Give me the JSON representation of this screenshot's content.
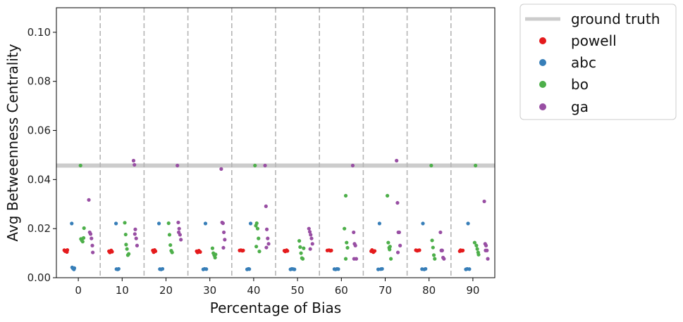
{
  "chart_data": {
    "type": "scatter",
    "xlabel": "Percentage of Bias",
    "ylabel": "Avg Betweenness Centrality",
    "xlim": [
      -5,
      95
    ],
    "ylim": [
      0,
      0.11
    ],
    "yticks": [
      "0.00",
      "0.02",
      "0.04",
      "0.06",
      "0.08",
      "0.10"
    ],
    "xticks": [
      "0",
      "10",
      "20",
      "30",
      "40",
      "50",
      "60",
      "70",
      "80",
      "90"
    ],
    "xtick_values": [
      0,
      10,
      20,
      30,
      40,
      50,
      60,
      70,
      80,
      90
    ],
    "ytick_values": [
      0,
      0.02,
      0.04,
      0.06,
      0.08,
      0.1
    ],
    "separators": [
      5,
      15,
      25,
      35,
      45,
      55,
      65,
      75,
      85
    ],
    "ground_truth": {
      "name": "ground truth",
      "value": 0.0457,
      "color": "#cccccc"
    },
    "legend_position": "outside-top-right",
    "grid": false,
    "series": [
      {
        "name": "powell",
        "color": "#e41a1c",
        "points": [
          [
            -3.2,
            0.0112
          ],
          [
            -3.0,
            0.0108
          ],
          [
            -2.8,
            0.011
          ],
          [
            -2.6,
            0.0105
          ],
          [
            -2.5,
            0.0113
          ],
          [
            7.0,
            0.0108
          ],
          [
            7.2,
            0.0103
          ],
          [
            7.5,
            0.0111
          ],
          [
            7.7,
            0.0106
          ],
          [
            17.0,
            0.0111
          ],
          [
            17.2,
            0.0104
          ],
          [
            17.4,
            0.0113
          ],
          [
            17.6,
            0.0108
          ],
          [
            27.0,
            0.0108
          ],
          [
            27.2,
            0.0103
          ],
          [
            27.5,
            0.011
          ],
          [
            27.8,
            0.0105
          ],
          [
            36.8,
            0.0111
          ],
          [
            37.1,
            0.0112
          ],
          [
            37.4,
            0.011
          ],
          [
            37.6,
            0.0111
          ],
          [
            47.0,
            0.011
          ],
          [
            47.2,
            0.0107
          ],
          [
            47.5,
            0.0112
          ],
          [
            47.7,
            0.0109
          ],
          [
            56.8,
            0.0111
          ],
          [
            57.2,
            0.0112
          ],
          [
            57.5,
            0.011
          ],
          [
            57.7,
            0.0111
          ],
          [
            66.8,
            0.0108
          ],
          [
            67.0,
            0.0113
          ],
          [
            67.3,
            0.0104
          ],
          [
            67.6,
            0.0109
          ],
          [
            77.0,
            0.0112
          ],
          [
            77.3,
            0.011
          ],
          [
            77.5,
            0.0111
          ],
          [
            77.8,
            0.0112
          ],
          [
            87.0,
            0.0108
          ],
          [
            87.2,
            0.0112
          ],
          [
            87.5,
            0.011
          ],
          [
            87.7,
            0.0111
          ]
        ]
      },
      {
        "name": "abc",
        "color": "#377eb8",
        "points": [
          [
            -1.5,
            0.0221
          ],
          [
            -1.4,
            0.0042
          ],
          [
            -1.2,
            0.0037
          ],
          [
            -1.0,
            0.0034
          ],
          [
            -0.9,
            0.0039
          ],
          [
            8.6,
            0.0221
          ],
          [
            8.7,
            0.0035
          ],
          [
            9.0,
            0.0034
          ],
          [
            9.2,
            0.0036
          ],
          [
            18.4,
            0.0221
          ],
          [
            18.6,
            0.0035
          ],
          [
            18.9,
            0.0034
          ],
          [
            19.2,
            0.0036
          ],
          [
            28.5,
            0.0034
          ],
          [
            28.8,
            0.0036
          ],
          [
            29.0,
            0.0221
          ],
          [
            29.2,
            0.0035
          ],
          [
            38.5,
            0.0034
          ],
          [
            38.8,
            0.0036
          ],
          [
            39.0,
            0.0035
          ],
          [
            39.3,
            0.0221
          ],
          [
            48.4,
            0.0034
          ],
          [
            48.7,
            0.0036
          ],
          [
            49.0,
            0.0035
          ],
          [
            49.3,
            0.0034
          ],
          [
            58.4,
            0.0035
          ],
          [
            58.7,
            0.0034
          ],
          [
            59.0,
            0.0036
          ],
          [
            59.3,
            0.0035
          ],
          [
            68.4,
            0.0034
          ],
          [
            68.7,
            0.0221
          ],
          [
            69.0,
            0.0035
          ],
          [
            69.3,
            0.0036
          ],
          [
            78.4,
            0.0035
          ],
          [
            78.6,
            0.0221
          ],
          [
            78.9,
            0.0034
          ],
          [
            79.2,
            0.0036
          ],
          [
            88.4,
            0.0034
          ],
          [
            88.7,
            0.0036
          ],
          [
            88.9,
            0.0221
          ],
          [
            89.2,
            0.0035
          ]
        ]
      },
      {
        "name": "bo",
        "color": "#4daf4a",
        "points": [
          [
            0.5,
            0.0457
          ],
          [
            0.6,
            0.0158
          ],
          [
            0.8,
            0.0152
          ],
          [
            1.0,
            0.0147
          ],
          [
            1.2,
            0.0162
          ],
          [
            1.3,
            0.0202
          ],
          [
            10.6,
            0.0224
          ],
          [
            10.8,
            0.0176
          ],
          [
            10.9,
            0.0135
          ],
          [
            11.1,
            0.0117
          ],
          [
            11.3,
            0.0092
          ],
          [
            11.5,
            0.0097
          ],
          [
            20.6,
            0.0222
          ],
          [
            20.8,
            0.0175
          ],
          [
            21.0,
            0.0133
          ],
          [
            21.2,
            0.011
          ],
          [
            21.4,
            0.0103
          ],
          [
            30.6,
            0.012
          ],
          [
            30.8,
            0.01
          ],
          [
            31.0,
            0.0092
          ],
          [
            31.2,
            0.0082
          ],
          [
            31.3,
            0.0095
          ],
          [
            40.3,
            0.0457
          ],
          [
            40.5,
            0.0212
          ],
          [
            40.7,
            0.0222
          ],
          [
            40.9,
            0.02
          ],
          [
            41.1,
            0.016
          ],
          [
            41.3,
            0.0107
          ],
          [
            40.6,
            0.0127
          ],
          [
            50.4,
            0.015
          ],
          [
            50.6,
            0.0125
          ],
          [
            50.8,
            0.01
          ],
          [
            51.0,
            0.008
          ],
          [
            51.2,
            0.0077
          ],
          [
            51.4,
            0.012
          ],
          [
            60.7,
            0.02
          ],
          [
            61.0,
            0.0334
          ],
          [
            61.2,
            0.0143
          ],
          [
            61.4,
            0.0122
          ],
          [
            61.0,
            0.0077
          ],
          [
            70.5,
            0.0334
          ],
          [
            70.7,
            0.0143
          ],
          [
            70.9,
            0.0122
          ],
          [
            71.1,
            0.0127
          ],
          [
            71.3,
            0.0077
          ],
          [
            71.0,
            0.0115
          ],
          [
            80.5,
            0.0457
          ],
          [
            80.7,
            0.0152
          ],
          [
            80.9,
            0.0123
          ],
          [
            81.1,
            0.0092
          ],
          [
            81.3,
            0.0077
          ],
          [
            90.6,
            0.0457
          ],
          [
            90.4,
            0.0143
          ],
          [
            90.8,
            0.0131
          ],
          [
            91.0,
            0.0117
          ],
          [
            91.2,
            0.0103
          ],
          [
            91.3,
            0.0094
          ]
        ]
      },
      {
        "name": "ga",
        "color": "#984ea3",
        "points": [
          [
            2.4,
            0.0317
          ],
          [
            2.6,
            0.0185
          ],
          [
            2.8,
            0.0178
          ],
          [
            3.0,
            0.016
          ],
          [
            3.2,
            0.0131
          ],
          [
            3.3,
            0.0103
          ],
          [
            12.6,
            0.0477
          ],
          [
            12.8,
            0.046
          ],
          [
            13.0,
            0.0197
          ],
          [
            13.2,
            0.016
          ],
          [
            13.4,
            0.0131
          ],
          [
            12.9,
            0.0178
          ],
          [
            22.6,
            0.0457
          ],
          [
            22.8,
            0.0225
          ],
          [
            23.0,
            0.02
          ],
          [
            23.2,
            0.0175
          ],
          [
            23.4,
            0.0155
          ],
          [
            22.9,
            0.0185
          ],
          [
            32.6,
            0.0443
          ],
          [
            32.8,
            0.0225
          ],
          [
            33.0,
            0.0222
          ],
          [
            33.2,
            0.0185
          ],
          [
            33.4,
            0.0155
          ],
          [
            33.1,
            0.0122
          ],
          [
            42.6,
            0.0457
          ],
          [
            42.8,
            0.0291
          ],
          [
            43.0,
            0.0197
          ],
          [
            43.2,
            0.016
          ],
          [
            43.4,
            0.0138
          ],
          [
            42.9,
            0.0123
          ],
          [
            52.6,
            0.02
          ],
          [
            52.8,
            0.0187
          ],
          [
            53.0,
            0.0175
          ],
          [
            53.2,
            0.016
          ],
          [
            53.4,
            0.0138
          ],
          [
            52.9,
            0.0117
          ],
          [
            62.6,
            0.0457
          ],
          [
            62.8,
            0.0185
          ],
          [
            63.0,
            0.0138
          ],
          [
            63.2,
            0.0131
          ],
          [
            63.4,
            0.0077
          ],
          [
            62.9,
            0.0077
          ],
          [
            72.6,
            0.0477
          ],
          [
            72.8,
            0.0305
          ],
          [
            73.0,
            0.0185
          ],
          [
            73.2,
            0.0185
          ],
          [
            73.4,
            0.0131
          ],
          [
            72.9,
            0.0103
          ],
          [
            82.6,
            0.0185
          ],
          [
            82.8,
            0.0111
          ],
          [
            83.0,
            0.0111
          ],
          [
            83.2,
            0.0082
          ],
          [
            83.4,
            0.0077
          ],
          [
            82.9,
            0.0111
          ],
          [
            92.6,
            0.0311
          ],
          [
            92.8,
            0.0138
          ],
          [
            93.0,
            0.0131
          ],
          [
            93.2,
            0.0111
          ],
          [
            93.4,
            0.0077
          ],
          [
            92.9,
            0.0111
          ]
        ]
      }
    ]
  }
}
